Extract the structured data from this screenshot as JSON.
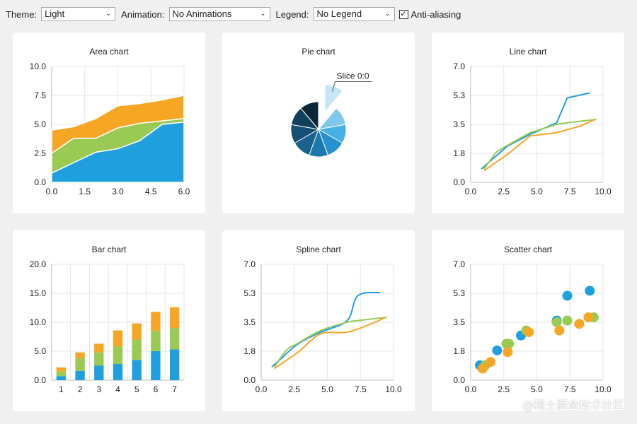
{
  "toolbar": {
    "theme_label": "Theme:",
    "theme_value": "Light",
    "animation_label": "Animation:",
    "animation_value": "No Animations",
    "legend_label": "Legend:",
    "legend_value": "No Legend",
    "antialias_label": "Anti-aliasing",
    "antialias_checked": true
  },
  "colors": {
    "blue": "#209fdf",
    "green": "#99ca53",
    "orange": "#f6a625",
    "grid": "#e5e5e5",
    "axis": "#bdbdbd",
    "page_bg": "#f0f0f0"
  },
  "watermark": "@稀土掘金技术社区",
  "chart_data": [
    {
      "id": "area",
      "type": "area",
      "title": "Area chart",
      "xlim": [
        0,
        6
      ],
      "ylim": [
        0,
        10
      ],
      "xticks": [
        "0.0",
        "1.5",
        "3.0",
        "4.5",
        "6.0"
      ],
      "yticks": [
        "0.0",
        "2.5",
        "5.0",
        "7.5",
        "10.0"
      ],
      "x": [
        0,
        1,
        2,
        3,
        4,
        5,
        6
      ],
      "series": [
        {
          "values": [
            0.8,
            1.7,
            2.6,
            2.9,
            3.6,
            5.0,
            5.2
          ]
        },
        {
          "values": [
            2.5,
            3.8,
            3.8,
            4.7,
            5.1,
            5.3,
            5.5
          ]
        },
        {
          "values": [
            4.5,
            4.8,
            5.5,
            6.6,
            6.8,
            7.1,
            7.5
          ]
        }
      ]
    },
    {
      "id": "pie",
      "type": "pie",
      "title": "Pie chart",
      "label": "Slice 0:0",
      "slices": [
        1,
        1,
        1,
        1,
        1,
        1,
        1,
        1,
        1
      ]
    },
    {
      "id": "line",
      "type": "line",
      "title": "Line chart",
      "xlim": [
        0,
        10
      ],
      "ylim": [
        0,
        7
      ],
      "xticks": [
        "0.0",
        "2.5",
        "5.0",
        "7.5",
        "10.0"
      ],
      "yticks": [
        "0.0",
        "1.8",
        "3.5",
        "5.3",
        "7.0"
      ],
      "series": [
        {
          "x": [
            0.8,
            1.5,
            2.8,
            4.5,
            6.5,
            7.3,
            9.0
          ],
          "y": [
            0.8,
            1.3,
            2.2,
            2.9,
            3.6,
            5.1,
            5.4
          ]
        },
        {
          "x": [
            1.0,
            1.9,
            2.7,
            4.5,
            6.5,
            7.3,
            9.5
          ],
          "y": [
            0.8,
            1.8,
            2.2,
            3.0,
            3.5,
            3.6,
            3.8
          ]
        },
        {
          "x": [
            1.0,
            2.8,
            4.5,
            6.5,
            8.3,
            9.4
          ],
          "y": [
            0.7,
            1.7,
            2.8,
            3.0,
            3.4,
            3.8
          ]
        }
      ]
    },
    {
      "id": "bar",
      "type": "bar",
      "title": "Bar chart",
      "categories": [
        "1",
        "2",
        "3",
        "4",
        "5",
        "6",
        "7"
      ],
      "ylim": [
        0,
        20
      ],
      "yticks": [
        "0.0",
        "5.0",
        "10.0",
        "15.0",
        "20.0"
      ],
      "series": [
        {
          "values": [
            0.7,
            1.6,
            2.5,
            2.8,
            3.5,
            5.0,
            5.3
          ]
        },
        {
          "values": [
            0.8,
            2.2,
            2.3,
            3.0,
            3.5,
            3.5,
            3.7
          ]
        },
        {
          "values": [
            0.7,
            1.0,
            1.5,
            2.8,
            2.8,
            3.3,
            3.6
          ]
        }
      ]
    },
    {
      "id": "spline",
      "type": "line",
      "title": "Spline chart",
      "xlim": [
        0,
        10
      ],
      "ylim": [
        0,
        7
      ],
      "xticks": [
        "0.0",
        "2.5",
        "5.0",
        "7.5",
        "10.0"
      ],
      "yticks": [
        "0.0",
        "1.8",
        "3.5",
        "5.3",
        "7.0"
      ],
      "series": [
        {
          "x": [
            0.8,
            1.5,
            2.8,
            4.5,
            6.5,
            7.3,
            9.0
          ],
          "y": [
            0.8,
            1.3,
            2.2,
            2.9,
            3.6,
            5.1,
            5.3
          ]
        },
        {
          "x": [
            1.0,
            1.9,
            2.7,
            4.5,
            6.5,
            7.3,
            9.5
          ],
          "y": [
            0.8,
            1.8,
            2.2,
            3.0,
            3.5,
            3.6,
            3.8
          ]
        },
        {
          "x": [
            1.0,
            2.8,
            4.5,
            6.5,
            8.3,
            9.4
          ],
          "y": [
            0.7,
            1.7,
            2.8,
            2.9,
            3.4,
            3.8
          ]
        }
      ]
    },
    {
      "id": "scatter",
      "type": "scatter",
      "title": "Scatter chart",
      "xlim": [
        0,
        10
      ],
      "ylim": [
        0,
        7
      ],
      "xticks": [
        "0.0",
        "2.5",
        "5.0",
        "7.5",
        "10.0"
      ],
      "yticks": [
        "0.0",
        "1.8",
        "3.5",
        "5.3",
        "7.0"
      ],
      "series": [
        {
          "x": [
            0.7,
            2.0,
            3.8,
            6.5,
            7.3,
            9.0
          ],
          "y": [
            0.9,
            1.8,
            2.7,
            3.6,
            5.1,
            5.4
          ]
        },
        {
          "x": [
            1.1,
            2.7,
            2.9,
            4.2,
            6.5,
            7.3,
            9.3
          ],
          "y": [
            0.9,
            2.2,
            2.2,
            3.0,
            3.5,
            3.6,
            3.8
          ]
        },
        {
          "x": [
            0.9,
            1.5,
            2.8,
            4.4,
            6.7,
            8.2,
            8.9
          ],
          "y": [
            0.7,
            1.1,
            1.7,
            2.9,
            3.0,
            3.4,
            3.8
          ]
        }
      ]
    }
  ]
}
